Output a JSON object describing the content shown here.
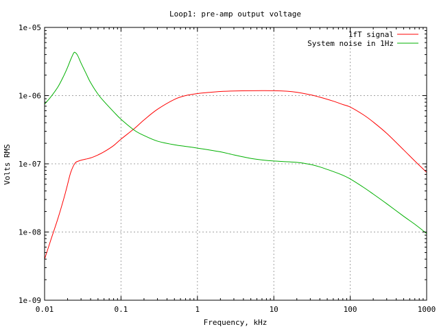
{
  "chart_data": {
    "type": "line",
    "title": "Loop1: pre-amp output voltage",
    "xlabel": "Frequency, kHz",
    "ylabel": "Volts RMS",
    "x_scale": "log",
    "y_scale": "log",
    "xlim": [
      0.01,
      1000
    ],
    "ylim": [
      1e-09,
      1e-05
    ],
    "grid": true,
    "legend_position": "top-right",
    "x_ticks": [
      {
        "value": 0.01,
        "label": "0.01"
      },
      {
        "value": 0.1,
        "label": "0.1"
      },
      {
        "value": 1,
        "label": "1"
      },
      {
        "value": 10,
        "label": "10"
      },
      {
        "value": 100,
        "label": "100"
      },
      {
        "value": 1000,
        "label": "1000"
      }
    ],
    "y_ticks": [
      {
        "value": 1e-09,
        "label": "1e-09"
      },
      {
        "value": 1e-08,
        "label": "1e-08"
      },
      {
        "value": 1e-07,
        "label": "1e-07"
      },
      {
        "value": 1e-06,
        "label": "1e-06"
      },
      {
        "value": 1e-05,
        "label": "1e-05"
      }
    ],
    "series": [
      {
        "name": "1fT signal",
        "color": "#ff0000",
        "points": [
          [
            0.01,
            4e-09
          ],
          [
            0.012,
            7.5e-09
          ],
          [
            0.015,
            1.6e-08
          ],
          [
            0.018,
            3.2e-08
          ],
          [
            0.02,
            5e-08
          ],
          [
            0.022,
            7.5e-08
          ],
          [
            0.025,
            1.02e-07
          ],
          [
            0.028,
            1.1e-07
          ],
          [
            0.032,
            1.15e-07
          ],
          [
            0.04,
            1.22e-07
          ],
          [
            0.05,
            1.35e-07
          ],
          [
            0.06,
            1.5e-07
          ],
          [
            0.08,
            1.85e-07
          ],
          [
            0.1,
            2.3e-07
          ],
          [
            0.15,
            3.3e-07
          ],
          [
            0.2,
            4.4e-07
          ],
          [
            0.3,
            6.3e-07
          ],
          [
            0.5,
            8.8e-07
          ],
          [
            0.7,
            1e-06
          ],
          [
            1,
            1.07e-06
          ],
          [
            1.5,
            1.12e-06
          ],
          [
            2,
            1.15e-06
          ],
          [
            3,
            1.17e-06
          ],
          [
            5,
            1.18e-06
          ],
          [
            10,
            1.18e-06
          ],
          [
            15,
            1.16e-06
          ],
          [
            20,
            1.12e-06
          ],
          [
            30,
            1.03e-06
          ],
          [
            40,
            9.5e-07
          ],
          [
            60,
            8.3e-07
          ],
          [
            80,
            7.4e-07
          ],
          [
            100,
            6.8e-07
          ],
          [
            150,
            5.2e-07
          ],
          [
            200,
            4.1e-07
          ],
          [
            300,
            2.8e-07
          ],
          [
            500,
            1.6e-07
          ],
          [
            700,
            1.1e-07
          ],
          [
            1000,
            7.5e-08
          ]
        ]
      },
      {
        "name": "System noise in 1Hz",
        "color": "#00b000",
        "points": [
          [
            0.01,
            7.5e-07
          ],
          [
            0.012,
            9.5e-07
          ],
          [
            0.015,
            1.35e-06
          ],
          [
            0.018,
            2e-06
          ],
          [
            0.02,
            2.6e-06
          ],
          [
            0.022,
            3.4e-06
          ],
          [
            0.024,
            4.2e-06
          ],
          [
            0.025,
            4.3e-06
          ],
          [
            0.027,
            3.9e-06
          ],
          [
            0.03,
            3e-06
          ],
          [
            0.035,
            2.1e-06
          ],
          [
            0.04,
            1.55e-06
          ],
          [
            0.05,
            1.05e-06
          ],
          [
            0.06,
            8.2e-07
          ],
          [
            0.08,
            5.8e-07
          ],
          [
            0.1,
            4.5e-07
          ],
          [
            0.15,
            3.1e-07
          ],
          [
            0.2,
            2.6e-07
          ],
          [
            0.3,
            2.15e-07
          ],
          [
            0.5,
            1.9e-07
          ],
          [
            0.7,
            1.8e-07
          ],
          [
            1,
            1.7e-07
          ],
          [
            2,
            1.5e-07
          ],
          [
            3,
            1.35e-07
          ],
          [
            5,
            1.2e-07
          ],
          [
            7,
            1.14e-07
          ],
          [
            10,
            1.1e-07
          ],
          [
            20,
            1.05e-07
          ],
          [
            30,
            9.8e-08
          ],
          [
            40,
            9e-08
          ],
          [
            60,
            7.7e-08
          ],
          [
            80,
            6.8e-08
          ],
          [
            100,
            6e-08
          ],
          [
            150,
            4.5e-08
          ],
          [
            200,
            3.6e-08
          ],
          [
            300,
            2.6e-08
          ],
          [
            500,
            1.7e-08
          ],
          [
            700,
            1.3e-08
          ],
          [
            1000,
            9.5e-09
          ]
        ]
      }
    ]
  }
}
